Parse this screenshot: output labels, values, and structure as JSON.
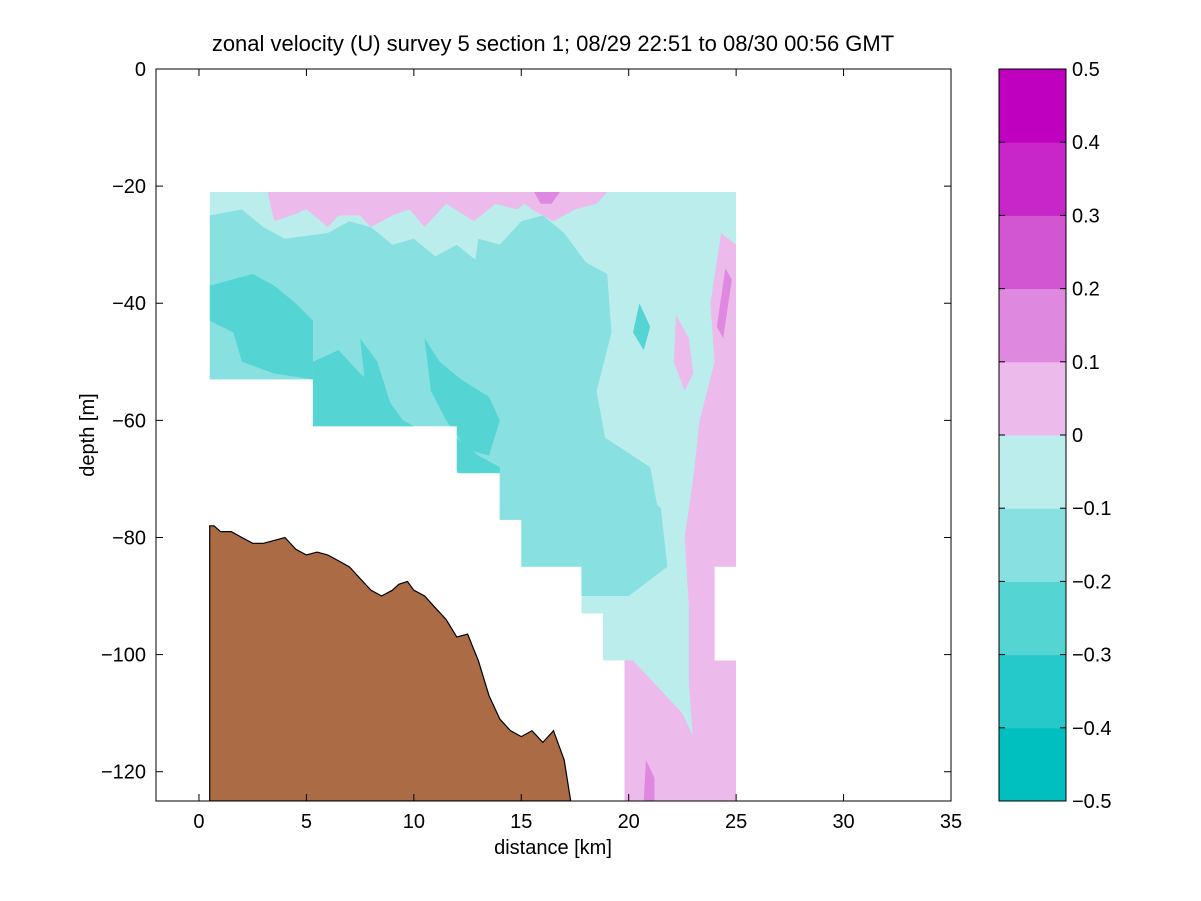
{
  "chart_data": {
    "type": "heatmap",
    "title": "zonal velocity (U) survey 5 section 1; 08/29 22:51 to 08/30 00:56 GMT",
    "xlabel": "distance [km]",
    "ylabel": "depth [m]",
    "xlim": [
      -2,
      35
    ],
    "ylim": [
      -125,
      0
    ],
    "xticks": [
      0,
      5,
      10,
      15,
      20,
      25,
      30,
      35
    ],
    "yticks": [
      -120,
      -100,
      -80,
      -60,
      -40,
      -20,
      0
    ],
    "xtick_labels": [
      "0",
      "5",
      "10",
      "15",
      "20",
      "25",
      "30",
      "35"
    ],
    "ytick_labels": [
      "−120",
      "−100",
      "−80",
      "−60",
      "−40",
      "−20",
      "0"
    ],
    "colorbar": {
      "levels": [
        -0.5,
        -0.4,
        -0.3,
        -0.2,
        -0.1,
        0,
        0.1,
        0.2,
        0.3,
        0.4,
        0.5
      ],
      "tick_labels": [
        "−0.5",
        "−0.4",
        "−0.3",
        "−0.2",
        "−0.1",
        "0",
        "0.1",
        "0.2",
        "0.3",
        "0.4",
        "0.5"
      ],
      "colors": [
        "#00bfbf",
        "#26c9c9",
        "#55d4d4",
        "#88e0e0",
        "#bbeded",
        "#ecbbec",
        "#df88df",
        "#d255d2",
        "#c926c9",
        "#bf00bf"
      ]
    },
    "data_extent": {
      "x_range": [
        0.5,
        25
      ],
      "depth_top": -21,
      "mask_bottom_steps": [
        [
          0.5,
          5.3,
          -53
        ],
        [
          5.3,
          12,
          -61
        ],
        [
          12,
          14,
          -69
        ],
        [
          14,
          15,
          -77
        ],
        [
          15,
          17.8,
          -85
        ],
        [
          17.8,
          18.8,
          -93
        ],
        [
          18.8,
          19.8,
          -101
        ],
        [
          19.8,
          25,
          -125
        ]
      ],
      "right_notch": {
        "x": [
          24,
          25
        ],
        "depth": [
          -85,
          -101
        ]
      }
    },
    "field_summary": [
      {
        "region": "upper left (x 0.5-12, depth -25 to -60)",
        "approx_velocity": -0.25
      },
      {
        "region": "upper band (x 3-15, depth -21 to -30)",
        "approx_velocity": 0.05
      },
      {
        "region": "center (x 12-20, depth -30 to -85)",
        "approx_velocity": -0.15
      },
      {
        "region": "right (x 20-23, depth -21 to -125)",
        "approx_velocity": -0.05
      },
      {
        "region": "right edge strip (x 23-25, depth -30 to -125)",
        "approx_velocity": 0.05
      },
      {
        "region": "bottom right (x 20-22, depth -100 to -125)",
        "approx_velocity": 0.05
      }
    ],
    "bathymetry": {
      "fill_color": "#aa6b45",
      "x": [
        0.5,
        0.7,
        1.0,
        1.5,
        2.0,
        2.5,
        3.0,
        3.5,
        4.0,
        4.5,
        5.0,
        5.5,
        6.0,
        6.5,
        7.0,
        7.5,
        8.0,
        8.5,
        9.0,
        9.3,
        9.7,
        10.0,
        10.5,
        11.0,
        11.5,
        12.0,
        12.5,
        13.0,
        13.5,
        14.0,
        14.5,
        15.0,
        15.5,
        16.0,
        16.5,
        17.0,
        17.3
      ],
      "y": [
        -78,
        -78,
        -79,
        -79,
        -80,
        -81,
        -81,
        -80.5,
        -80,
        -82,
        -83,
        -82.5,
        -83,
        -84,
        -85,
        -87,
        -89,
        -90,
        -89,
        -88,
        -87.5,
        -89,
        -90,
        -92,
        -94,
        -97,
        -96.5,
        -101,
        -107,
        -111,
        -113,
        -114,
        -113,
        -115,
        -113,
        -118,
        -125
      ]
    }
  }
}
